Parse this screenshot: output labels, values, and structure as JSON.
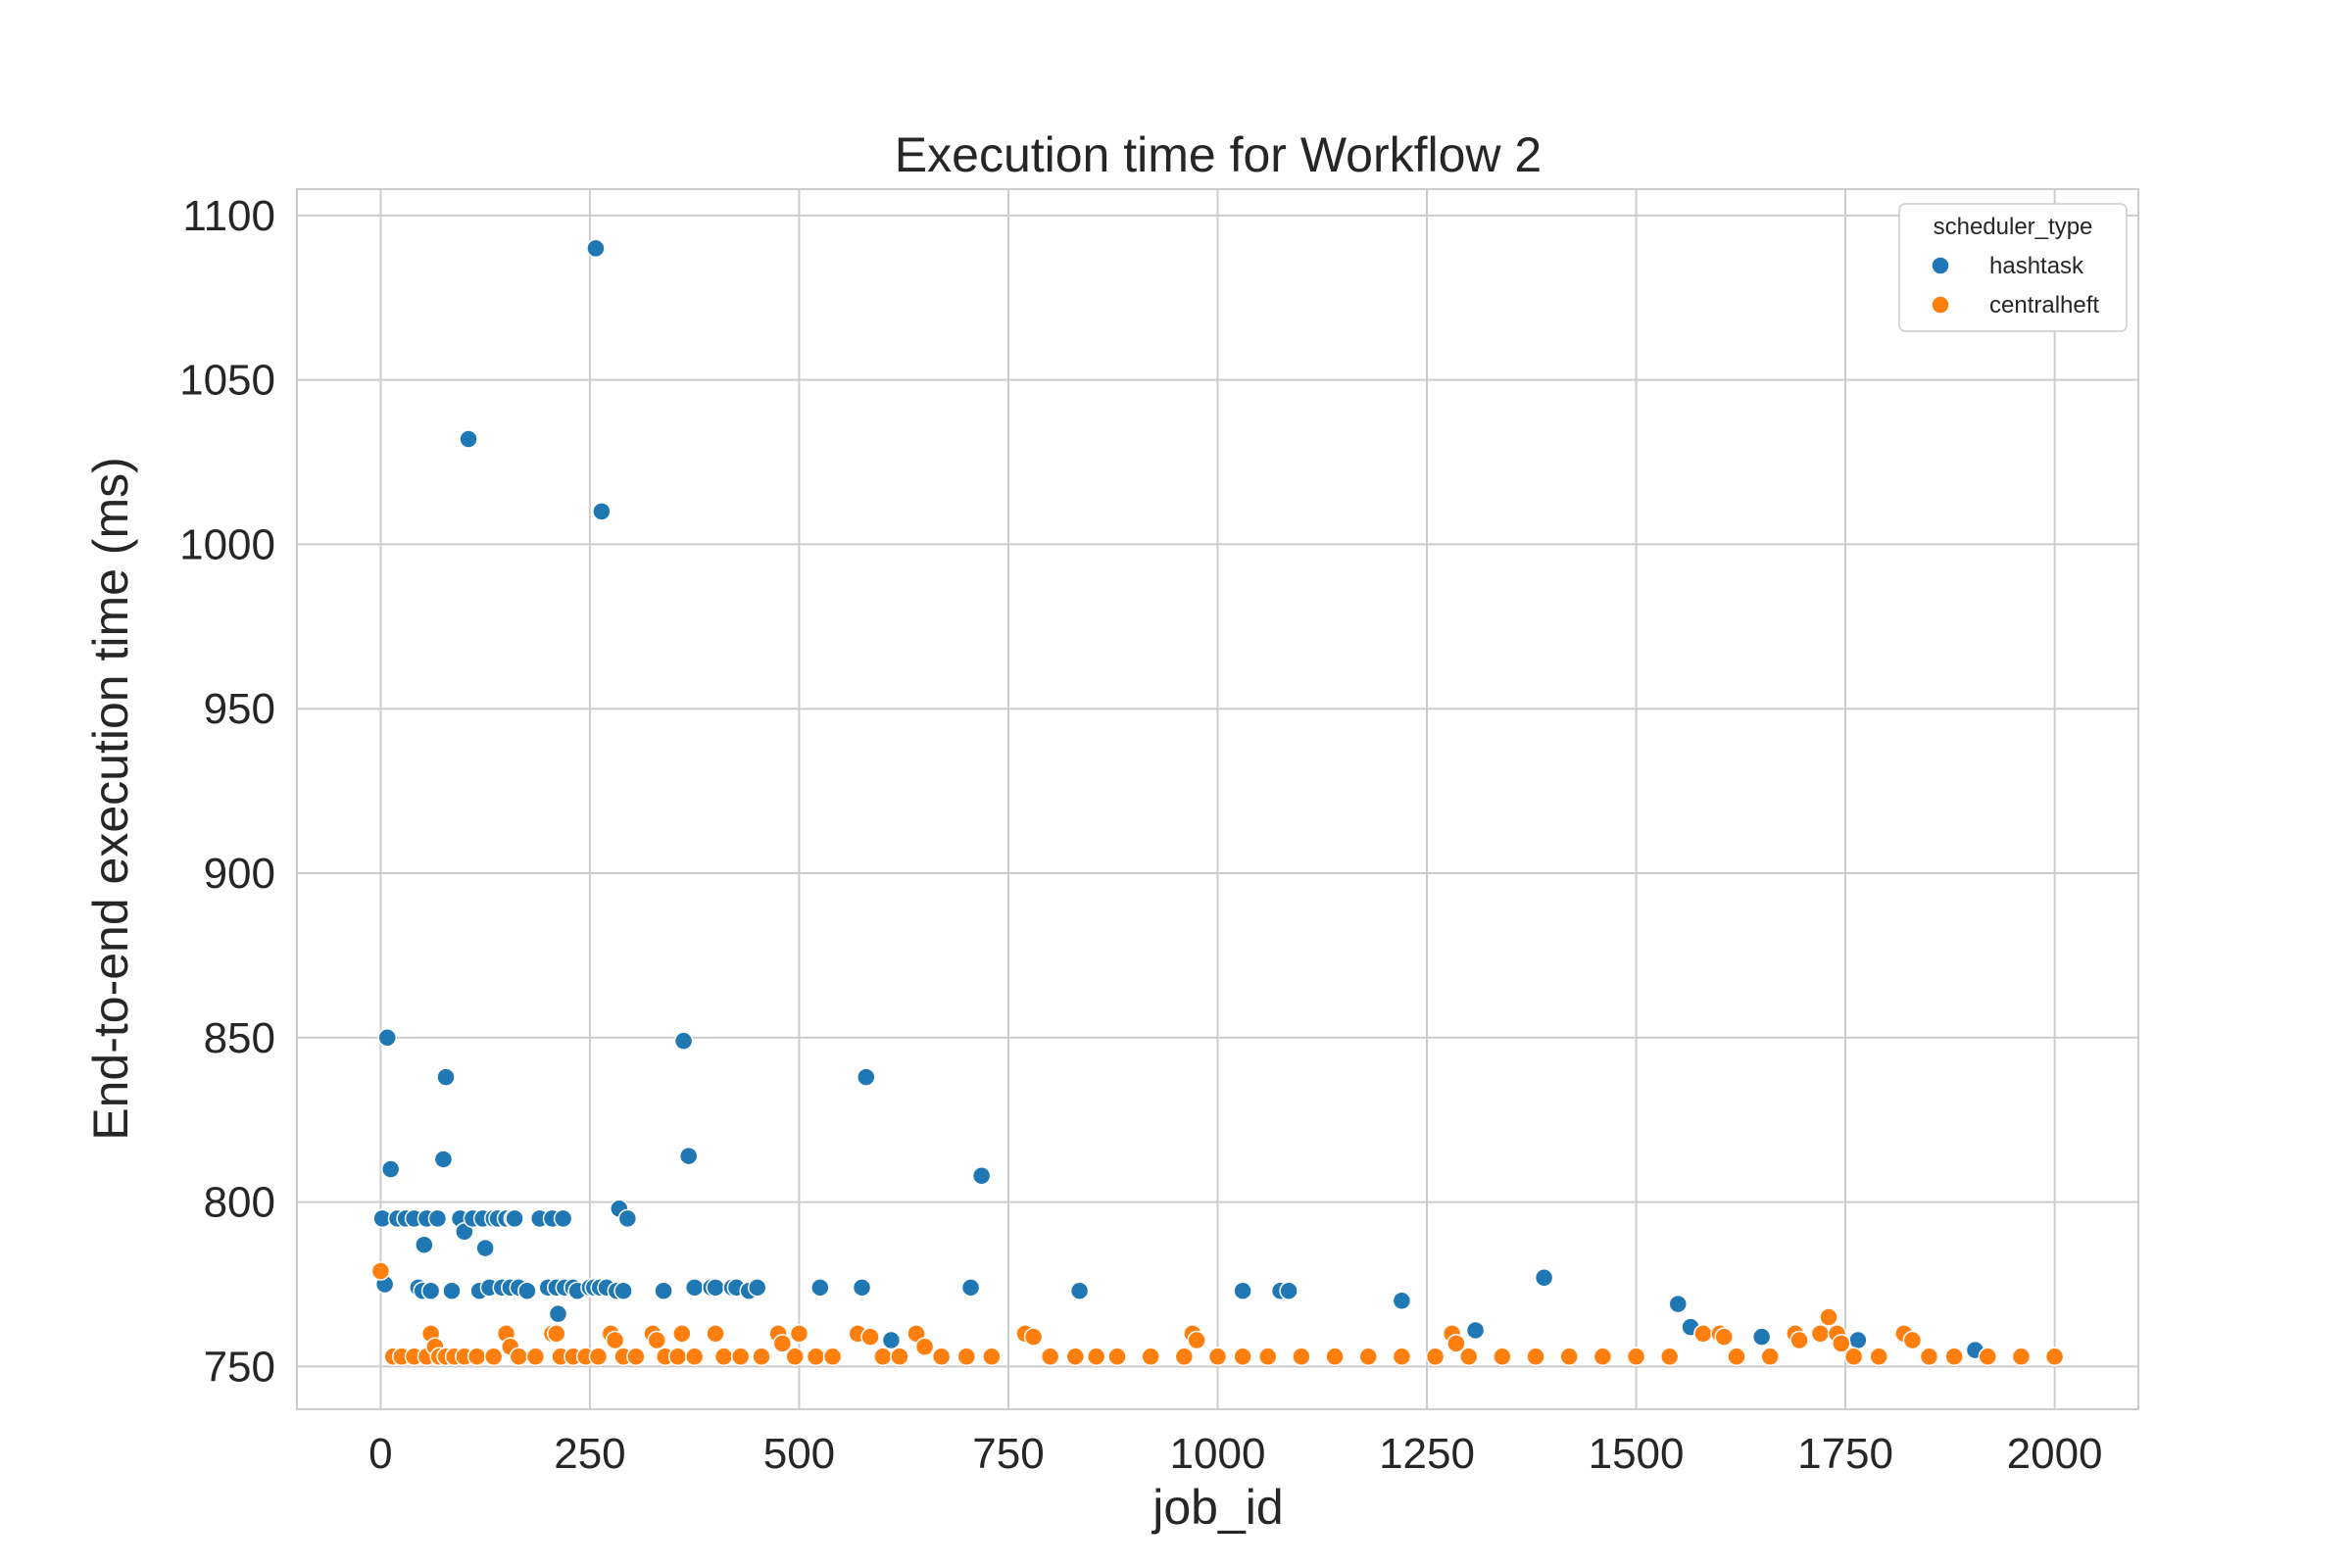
{
  "chart_data": {
    "type": "scatter",
    "title": "Execution time for Workflow 2",
    "xlabel": "job_id",
    "ylabel": "End-to-end execution time (ms)",
    "xlim": [
      -100,
      2100
    ],
    "ylim": [
      737,
      1108
    ],
    "xticks": [
      0,
      250,
      500,
      750,
      1000,
      1250,
      1500,
      1750,
      2000
    ],
    "xtick_labels": [
      "0",
      "250",
      "500",
      "750",
      "1000",
      "1250",
      "1500",
      "1750",
      "2000"
    ],
    "yticks": [
      750,
      800,
      850,
      900,
      950,
      1000,
      1050,
      1100
    ],
    "ytick_labels": [
      "750",
      "800",
      "850",
      "900",
      "950",
      "1000",
      "1050",
      "1100"
    ],
    "grid": true,
    "legend": {
      "title": "scheduler_type",
      "placement": "top-right"
    },
    "series": [
      {
        "name": "hashtask",
        "color": "#1f77b4",
        "points": [
          [
            2,
            795
          ],
          [
            5,
            775
          ],
          [
            8,
            850
          ],
          [
            12,
            810
          ],
          [
            20,
            795
          ],
          [
            30,
            795
          ],
          [
            40,
            795
          ],
          [
            45,
            774
          ],
          [
            50,
            773
          ],
          [
            55,
            795
          ],
          [
            52,
            787
          ],
          [
            60,
            773
          ],
          [
            68,
            795
          ],
          [
            75,
            813
          ],
          [
            78,
            838
          ],
          [
            85,
            773
          ],
          [
            95,
            795
          ],
          [
            100,
            791
          ],
          [
            105,
            1032
          ],
          [
            110,
            795
          ],
          [
            118,
            773
          ],
          [
            122,
            795
          ],
          [
            125,
            786
          ],
          [
            130,
            774
          ],
          [
            135,
            795
          ],
          [
            140,
            795
          ],
          [
            145,
            774
          ],
          [
            150,
            795
          ],
          [
            155,
            774
          ],
          [
            158,
            795
          ],
          [
            160,
            795
          ],
          [
            165,
            774
          ],
          [
            175,
            773
          ],
          [
            190,
            795
          ],
          [
            200,
            774
          ],
          [
            205,
            795
          ],
          [
            210,
            774
          ],
          [
            212,
            766
          ],
          [
            218,
            795
          ],
          [
            220,
            774
          ],
          [
            230,
            774
          ],
          [
            235,
            773
          ],
          [
            250,
            774
          ],
          [
            255,
            774
          ],
          [
            257,
            1090
          ],
          [
            262,
            774
          ],
          [
            264,
            1010
          ],
          [
            270,
            774
          ],
          [
            282,
            773
          ],
          [
            285,
            798
          ],
          [
            290,
            773
          ],
          [
            295,
            795
          ],
          [
            338,
            773
          ],
          [
            362,
            849
          ],
          [
            368,
            814
          ],
          [
            375,
            774
          ],
          [
            395,
            774
          ],
          [
            400,
            774
          ],
          [
            420,
            774
          ],
          [
            425,
            774
          ],
          [
            440,
            773
          ],
          [
            450,
            774
          ],
          [
            525,
            774
          ],
          [
            575,
            774
          ],
          [
            580,
            838
          ],
          [
            610,
            758
          ],
          [
            705,
            774
          ],
          [
            718,
            808
          ],
          [
            835,
            773
          ],
          [
            1030,
            773
          ],
          [
            1075,
            773
          ],
          [
            1085,
            773
          ],
          [
            1220,
            770
          ],
          [
            1308,
            761
          ],
          [
            1390,
            777
          ],
          [
            1550,
            769
          ],
          [
            1565,
            762
          ],
          [
            1650,
            759
          ],
          [
            1765,
            758
          ],
          [
            1905,
            755
          ]
        ]
      },
      {
        "name": "centralheft",
        "color": "#ff7f0e",
        "points": [
          [
            0,
            779
          ],
          [
            15,
            753
          ],
          [
            25,
            753
          ],
          [
            40,
            753
          ],
          [
            55,
            753
          ],
          [
            60,
            760
          ],
          [
            65,
            756
          ],
          [
            70,
            753
          ],
          [
            78,
            753
          ],
          [
            88,
            753
          ],
          [
            100,
            753
          ],
          [
            115,
            753
          ],
          [
            135,
            753
          ],
          [
            150,
            760
          ],
          [
            155,
            756
          ],
          [
            165,
            753
          ],
          [
            185,
            753
          ],
          [
            205,
            760
          ],
          [
            210,
            760
          ],
          [
            215,
            753
          ],
          [
            230,
            753
          ],
          [
            245,
            753
          ],
          [
            260,
            753
          ],
          [
            275,
            760
          ],
          [
            280,
            758
          ],
          [
            290,
            753
          ],
          [
            305,
            753
          ],
          [
            325,
            760
          ],
          [
            330,
            758
          ],
          [
            340,
            753
          ],
          [
            355,
            753
          ],
          [
            360,
            760
          ],
          [
            375,
            753
          ],
          [
            400,
            760
          ],
          [
            410,
            753
          ],
          [
            430,
            753
          ],
          [
            455,
            753
          ],
          [
            475,
            760
          ],
          [
            480,
            757
          ],
          [
            495,
            753
          ],
          [
            500,
            760
          ],
          [
            520,
            753
          ],
          [
            540,
            753
          ],
          [
            570,
            760
          ],
          [
            585,
            759
          ],
          [
            600,
            753
          ],
          [
            620,
            753
          ],
          [
            640,
            760
          ],
          [
            650,
            756
          ],
          [
            670,
            753
          ],
          [
            700,
            753
          ],
          [
            730,
            753
          ],
          [
            770,
            760
          ],
          [
            780,
            759
          ],
          [
            800,
            753
          ],
          [
            830,
            753
          ],
          [
            855,
            753
          ],
          [
            880,
            753
          ],
          [
            920,
            753
          ],
          [
            960,
            753
          ],
          [
            970,
            760
          ],
          [
            975,
            758
          ],
          [
            1000,
            753
          ],
          [
            1030,
            753
          ],
          [
            1060,
            753
          ],
          [
            1100,
            753
          ],
          [
            1140,
            753
          ],
          [
            1180,
            753
          ],
          [
            1220,
            753
          ],
          [
            1260,
            753
          ],
          [
            1280,
            760
          ],
          [
            1285,
            757
          ],
          [
            1300,
            753
          ],
          [
            1340,
            753
          ],
          [
            1380,
            753
          ],
          [
            1420,
            753
          ],
          [
            1460,
            753
          ],
          [
            1500,
            753
          ],
          [
            1540,
            753
          ],
          [
            1580,
            760
          ],
          [
            1600,
            760
          ],
          [
            1605,
            759
          ],
          [
            1620,
            753
          ],
          [
            1660,
            753
          ],
          [
            1690,
            760
          ],
          [
            1695,
            758
          ],
          [
            1720,
            760
          ],
          [
            1730,
            765
          ],
          [
            1740,
            760
          ],
          [
            1745,
            757
          ],
          [
            1760,
            753
          ],
          [
            1790,
            753
          ],
          [
            1820,
            760
          ],
          [
            1830,
            758
          ],
          [
            1850,
            753
          ],
          [
            1880,
            753
          ],
          [
            1920,
            753
          ],
          [
            1960,
            753
          ],
          [
            2000,
            753
          ]
        ]
      }
    ]
  }
}
